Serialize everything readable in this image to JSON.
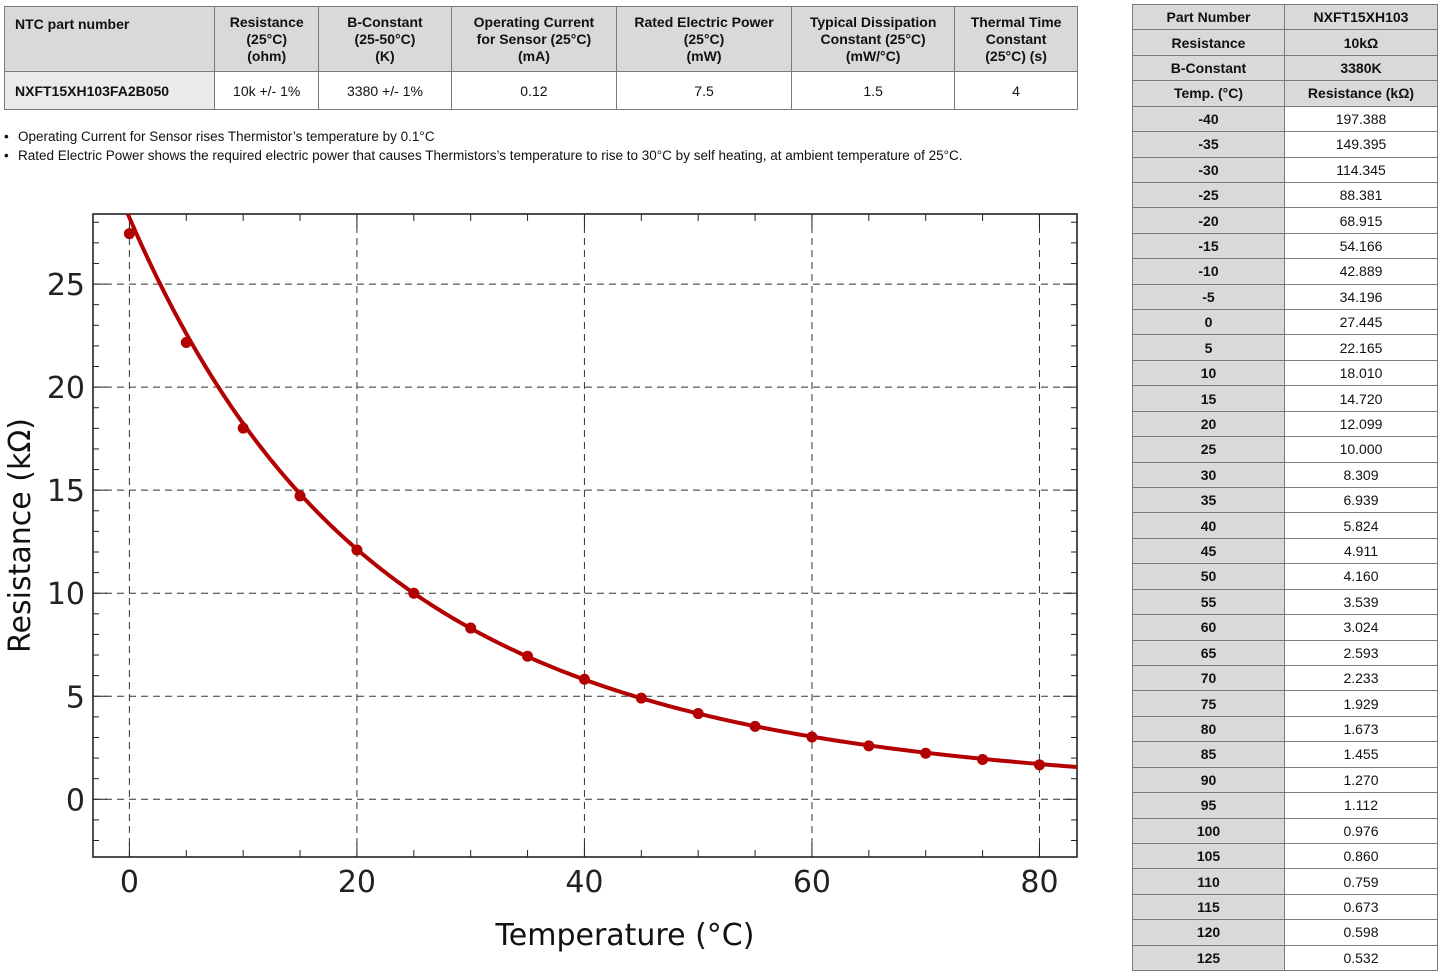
{
  "spec_table": {
    "headers": [
      "NTC part number",
      "Resistance\n(25°C)\n(ohm)",
      "B-Constant\n(25-50°C)\n(K)",
      "Operating Current\nfor Sensor (25°C)\n(mA)",
      "Rated Electric Power\n(25°C)\n(mW)",
      "Typical Dissipation\nConstant (25°C)\n(mW/°C)",
      "Thermal Time\nConstant\n(25°C) (s)"
    ],
    "row": [
      "NXFT15XH103FA2B050",
      "10k +/- 1%",
      "3380 +/- 1%",
      "0.12",
      "7.5",
      "1.5",
      "4"
    ]
  },
  "notes": [
    "Operating Current for Sensor rises Thermistor’s temperature by 0.1°C",
    "Rated Electric Power shows the required electric power that causes Thermistors’s temperature to rise to 30°C by self heating, at ambient temperature of 25°C."
  ],
  "note_bullet": "•",
  "chart_data": {
    "type": "line",
    "xlabel": "Temperature (°C)",
    "ylabel": "Resistance (kΩ)",
    "xlim": [
      -3.2,
      83.3
    ],
    "ylim": [
      -2.8,
      28.4
    ],
    "xticks": [
      0,
      20,
      40,
      60,
      80
    ],
    "yticks": [
      0,
      5,
      10,
      15,
      20,
      25
    ],
    "grid": true,
    "line_color": "#b30000",
    "series": [
      {
        "x": [
          0,
          5,
          10,
          15,
          20,
          25,
          30,
          35,
          40,
          45,
          50,
          55,
          60,
          65,
          70,
          75,
          80
        ],
        "values": [
          27.445,
          22.165,
          18.01,
          14.72,
          12.099,
          10.0,
          8.309,
          6.939,
          5.824,
          4.911,
          4.16,
          3.539,
          3.024,
          2.593,
          2.233,
          1.929,
          1.673
        ]
      }
    ]
  },
  "resistance_table": {
    "summary": [
      {
        "label": "Part Number",
        "value": "NXFT15XH103"
      },
      {
        "label": "Resistance",
        "value": "10kΩ"
      },
      {
        "label": "B-Constant",
        "value": "3380K"
      }
    ],
    "header": {
      "temp": "Temp. (°C)",
      "res": "Resistance (kΩ)"
    },
    "rows": [
      [
        "-40",
        "197.388"
      ],
      [
        "-35",
        "149.395"
      ],
      [
        "-30",
        "114.345"
      ],
      [
        "-25",
        "88.381"
      ],
      [
        "-20",
        "68.915"
      ],
      [
        "-15",
        "54.166"
      ],
      [
        "-10",
        "42.889"
      ],
      [
        "-5",
        "34.196"
      ],
      [
        "0",
        "27.445"
      ],
      [
        "5",
        "22.165"
      ],
      [
        "10",
        "18.010"
      ],
      [
        "15",
        "14.720"
      ],
      [
        "20",
        "12.099"
      ],
      [
        "25",
        "10.000"
      ],
      [
        "30",
        "8.309"
      ],
      [
        "35",
        "6.939"
      ],
      [
        "40",
        "5.824"
      ],
      [
        "45",
        "4.911"
      ],
      [
        "50",
        "4.160"
      ],
      [
        "55",
        "3.539"
      ],
      [
        "60",
        "3.024"
      ],
      [
        "65",
        "2.593"
      ],
      [
        "70",
        "2.233"
      ],
      [
        "75",
        "1.929"
      ],
      [
        "80",
        "1.673"
      ],
      [
        "85",
        "1.455"
      ],
      [
        "90",
        "1.270"
      ],
      [
        "95",
        "1.112"
      ],
      [
        "100",
        "0.976"
      ],
      [
        "105",
        "0.860"
      ],
      [
        "110",
        "0.759"
      ],
      [
        "115",
        "0.673"
      ],
      [
        "120",
        "0.598"
      ],
      [
        "125",
        "0.532"
      ]
    ]
  }
}
